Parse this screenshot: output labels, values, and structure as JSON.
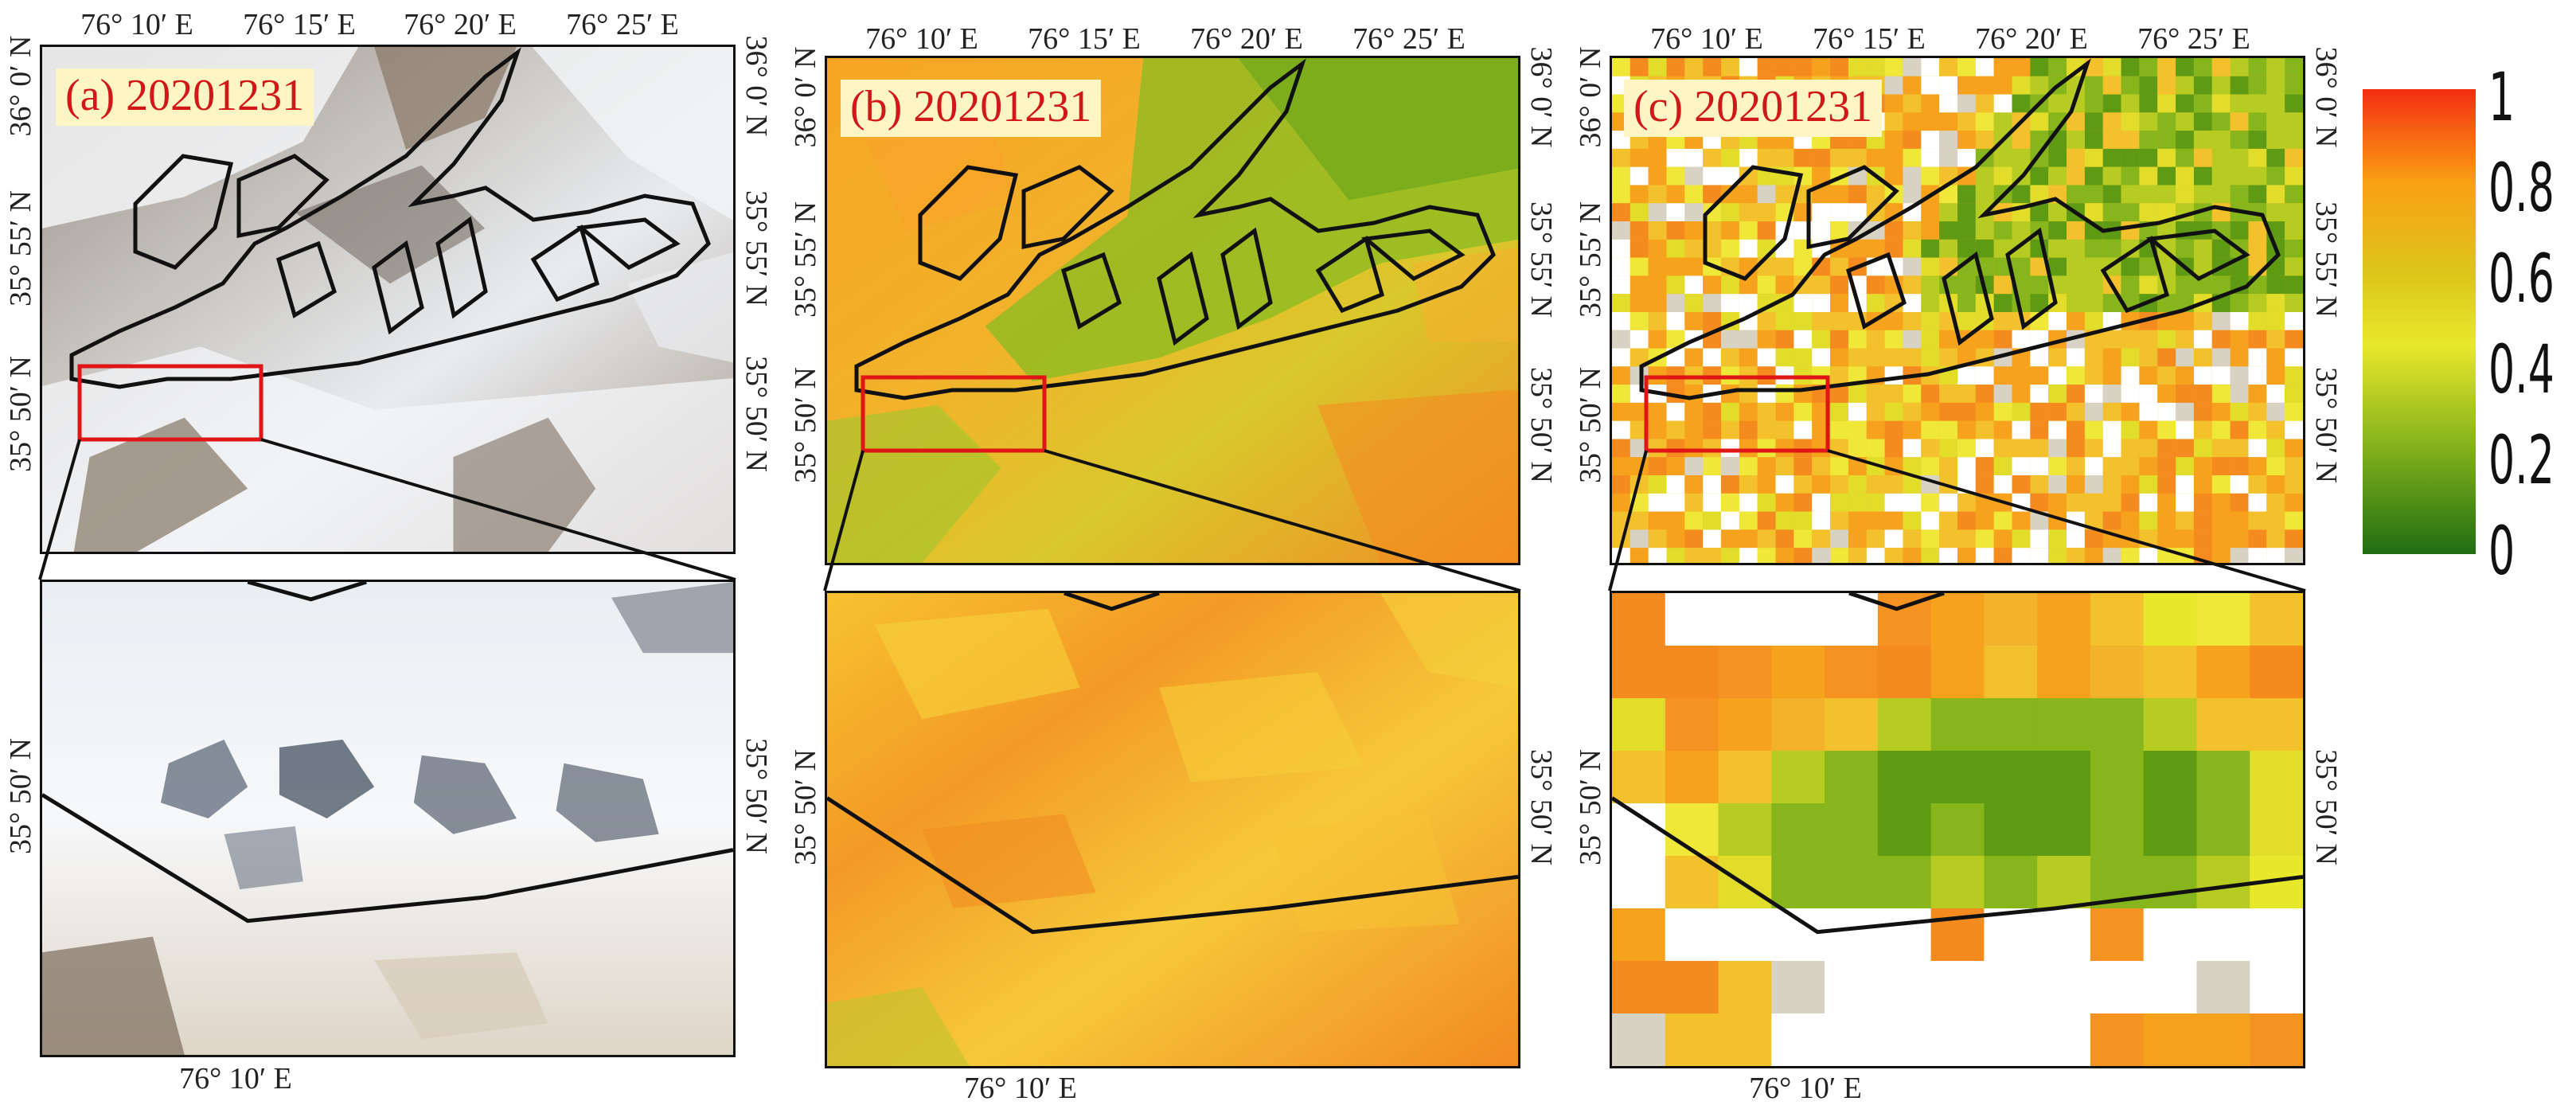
{
  "panels": [
    {
      "id": "a",
      "title": "(a) 20201231",
      "type": "true-color-satellite"
    },
    {
      "id": "b",
      "title": "(b) 20201231",
      "type": "snow-index-fine"
    },
    {
      "id": "c",
      "title": "(c) 20201231",
      "type": "snow-index-coarse"
    }
  ],
  "top_x_labels": [
    "76° 10′ E",
    "76° 15′ E",
    "76° 20′ E",
    "76° 25′ E"
  ],
  "top_y_labels": [
    "35° 50′ N",
    "35° 55′ N",
    "36° 0′ N"
  ],
  "inset_x_label": "76° 10′ E",
  "inset_y_label": "35° 50′ N",
  "colorbar": {
    "ticks": [
      "1",
      "0.8",
      "0.6",
      "0.4",
      "0.2",
      "0"
    ],
    "colors": [
      "#f42d12",
      "#f9a013",
      "#dcc61a",
      "#e8e82a",
      "#8cb71c",
      "#1f6e12"
    ]
  },
  "overlay_colors": {
    "outline": "#111111",
    "zoom_box": "#e01515"
  }
}
